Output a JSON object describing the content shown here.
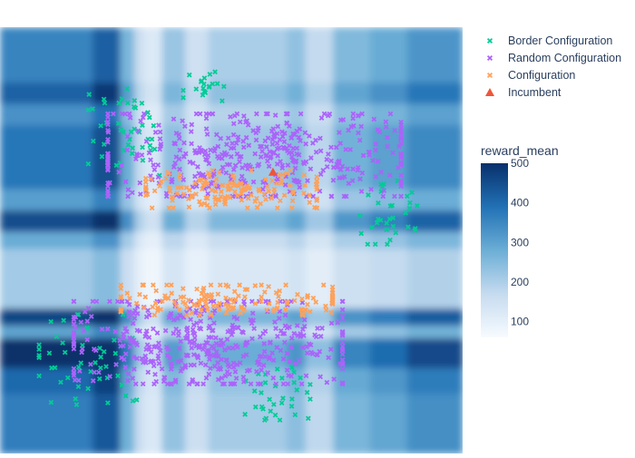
{
  "chart_data": {
    "type": "scatter",
    "title": "",
    "xlabel": "",
    "ylabel": "",
    "background": {
      "type": "heatmap",
      "colorscale_name": "Blues",
      "colorscale": [
        "#f7fbff",
        "#c6dbef",
        "#6baed6",
        "#2171b5",
        "#08306b"
      ],
      "colorbar_title": "reward_mean",
      "colorbar_range": [
        60,
        500
      ],
      "colorbar_ticks": [
        100,
        200,
        300,
        400,
        500
      ],
      "x_bands": [
        {
          "from": 0.0,
          "to": 0.2,
          "value": 330
        },
        {
          "from": 0.2,
          "to": 0.26,
          "value": 390
        },
        {
          "from": 0.26,
          "to": 0.29,
          "value": 240
        },
        {
          "from": 0.29,
          "to": 0.31,
          "value": 140
        },
        {
          "from": 0.31,
          "to": 0.35,
          "value": 100
        },
        {
          "from": 0.35,
          "to": 0.4,
          "value": 200
        },
        {
          "from": 0.4,
          "to": 0.45,
          "value": 130
        },
        {
          "from": 0.45,
          "to": 0.62,
          "value": 180
        },
        {
          "from": 0.62,
          "to": 0.66,
          "value": 210
        },
        {
          "from": 0.66,
          "to": 0.72,
          "value": 150
        },
        {
          "from": 0.72,
          "to": 0.8,
          "value": 230
        },
        {
          "from": 0.8,
          "to": 0.88,
          "value": 260
        },
        {
          "from": 0.88,
          "to": 1.0,
          "value": 300
        }
      ],
      "y_bands": [
        {
          "from": 0.0,
          "to": 0.13,
          "value": 280
        },
        {
          "from": 0.13,
          "to": 0.18,
          "value": 330
        },
        {
          "from": 0.18,
          "to": 0.23,
          "value": 260
        },
        {
          "from": 0.23,
          "to": 0.38,
          "value": 300
        },
        {
          "from": 0.38,
          "to": 0.43,
          "value": 240
        },
        {
          "from": 0.43,
          "to": 0.48,
          "value": 360
        },
        {
          "from": 0.48,
          "to": 0.52,
          "value": 220
        },
        {
          "from": 0.52,
          "to": 0.66,
          "value": 160
        },
        {
          "from": 0.66,
          "to": 0.7,
          "value": 370
        },
        {
          "from": 0.7,
          "to": 0.73,
          "value": 230
        },
        {
          "from": 0.73,
          "to": 0.8,
          "value": 400
        },
        {
          "from": 0.8,
          "to": 0.86,
          "value": 320
        },
        {
          "from": 0.86,
          "to": 1.0,
          "value": 290
        }
      ]
    },
    "series": [
      {
        "name": "Border Configuration",
        "color": "#00cc96",
        "symbol": "x",
        "count": 180,
        "clusters": [
          {
            "cx": 0.19,
            "cy": 0.78,
            "rx": 0.12,
            "ry": 0.12,
            "n": 45
          },
          {
            "cx": 0.6,
            "cy": 0.86,
            "rx": 0.08,
            "ry": 0.07,
            "n": 35
          },
          {
            "cx": 0.84,
            "cy": 0.43,
            "rx": 0.07,
            "ry": 0.09,
            "n": 35
          },
          {
            "cx": 0.27,
            "cy": 0.25,
            "rx": 0.09,
            "ry": 0.12,
            "n": 45
          },
          {
            "cx": 0.44,
            "cy": 0.14,
            "rx": 0.05,
            "ry": 0.04,
            "n": 20
          }
        ]
      },
      {
        "name": "Random Configuration",
        "color": "#ab63fa",
        "symbol": "x",
        "count": 900,
        "clusters": [
          {
            "cx": 0.45,
            "cy": 0.74,
            "rx": 0.33,
            "ry": 0.11,
            "n": 450
          },
          {
            "cx": 0.55,
            "cy": 0.3,
            "rx": 0.36,
            "ry": 0.11,
            "n": 450
          }
        ]
      },
      {
        "name": "Configuration",
        "color": "#ffa15a",
        "symbol": "x",
        "count": 300,
        "clusters": [
          {
            "cx": 0.49,
            "cy": 0.64,
            "rx": 0.26,
            "ry": 0.04,
            "n": 150
          },
          {
            "cx": 0.5,
            "cy": 0.38,
            "rx": 0.21,
            "ry": 0.05,
            "n": 150
          }
        ]
      },
      {
        "name": "Incumbent",
        "color": "#ef553b",
        "symbol": "triangle-up",
        "count": 1,
        "points": [
          {
            "x": 0.59,
            "y": 0.34
          }
        ]
      }
    ],
    "legend": {
      "position": "top-right"
    },
    "grid": false
  }
}
